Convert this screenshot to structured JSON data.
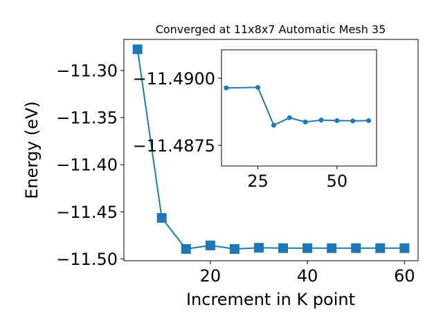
{
  "chart_data": [
    {
      "type": "line",
      "title": "Converged at 11x8x7 Automatic Mesh 35",
      "xlabel": "Increment in K point",
      "ylabel": "Energy (eV)",
      "xlim": [
        2.2,
        62.8
      ],
      "ylim": [
        -11.502,
        -11.267
      ],
      "xticks": [
        20,
        40,
        60
      ],
      "xtick_labels": [
        "20",
        "40",
        "60"
      ],
      "yticks": [
        -11.3,
        -11.35,
        -11.4,
        -11.45,
        -11.5
      ],
      "ytick_labels": [
        "−11.30",
        "−11.35",
        "−11.40",
        "−11.45",
        "−11.50"
      ],
      "marker": "square",
      "grid": false,
      "series": [
        {
          "color": "#1f77b4",
          "x": [
            5,
            10,
            15,
            20,
            25,
            30,
            35,
            40,
            45,
            50,
            55,
            60
          ],
          "y": [
            -11.2775,
            -11.4565,
            -11.4895,
            -11.4857,
            -11.4895,
            -11.4882,
            -11.4886,
            -11.4886,
            -11.4886,
            -11.4886,
            -11.4886,
            -11.4886
          ]
        }
      ]
    },
    {
      "type": "line",
      "title": "",
      "xlim": [
        13.5,
        62.5
      ],
      "ylim": [
        -11.48673,
        -11.49106
      ],
      "xticks": [
        25,
        50
      ],
      "xtick_labels": [
        "25",
        "50"
      ],
      "yticks": [
        -11.49,
        -11.4875
      ],
      "ytick_labels": [
        "−11.4900",
        "−11.4875"
      ],
      "marker": "circle",
      "grid": false,
      "series": [
        {
          "color": "#1f77b4",
          "x": [
            15,
            25,
            30,
            35,
            40,
            45,
            50,
            55,
            60
          ],
          "y": [
            -11.48964,
            -11.48966,
            -11.48825,
            -11.48853,
            -11.48837,
            -11.48844,
            -11.48842,
            -11.48841,
            -11.48842
          ]
        }
      ]
    }
  ]
}
